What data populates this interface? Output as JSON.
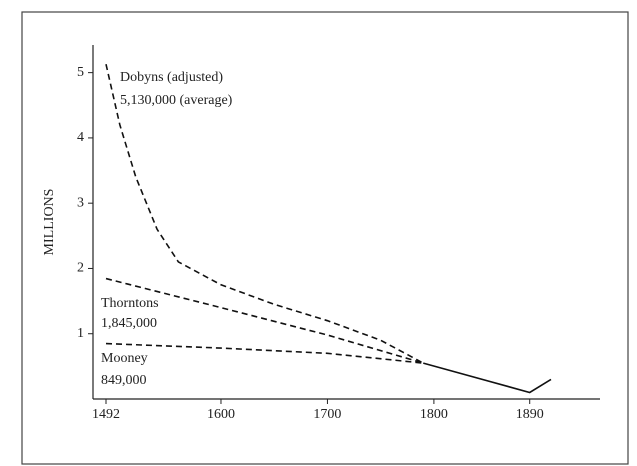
{
  "chart_data": {
    "type": "line",
    "y_label": "MILLIONS",
    "xlim": [
      1492,
      1910
    ],
    "xticks": [
      1492,
      1600,
      1700,
      1800,
      1890
    ],
    "ylim": [
      0,
      5.5
    ],
    "yticks": [
      1,
      2,
      3,
      4,
      5
    ],
    "series": [
      {
        "name": "Dobyns (adjusted)",
        "color": "#111111",
        "dash": true,
        "x": [
          1492,
          1505,
          1520,
          1540,
          1560,
          1600,
          1650,
          1700,
          1750,
          1790
        ],
        "values": [
          5.13,
          4.2,
          3.4,
          2.6,
          2.1,
          1.75,
          1.45,
          1.2,
          0.9,
          0.55
        ]
      },
      {
        "name": "Thorntons",
        "color": "#111111",
        "dash": true,
        "x": [
          1492,
          1600,
          1700,
          1790
        ],
        "values": [
          1.845,
          1.4,
          0.98,
          0.55
        ]
      },
      {
        "name": "Mooney",
        "color": "#111111",
        "dash": true,
        "x": [
          1492,
          1600,
          1700,
          1790
        ],
        "values": [
          0.849,
          0.78,
          0.7,
          0.55
        ]
      },
      {
        "color": "#111111",
        "dash": false,
        "x": [
          1790,
          1890,
          1910
        ],
        "values": [
          0.55,
          0.1,
          0.3
        ]
      }
    ],
    "annotations": [
      "5,130,000 (average)",
      "1,845,000",
      "849,000"
    ]
  }
}
